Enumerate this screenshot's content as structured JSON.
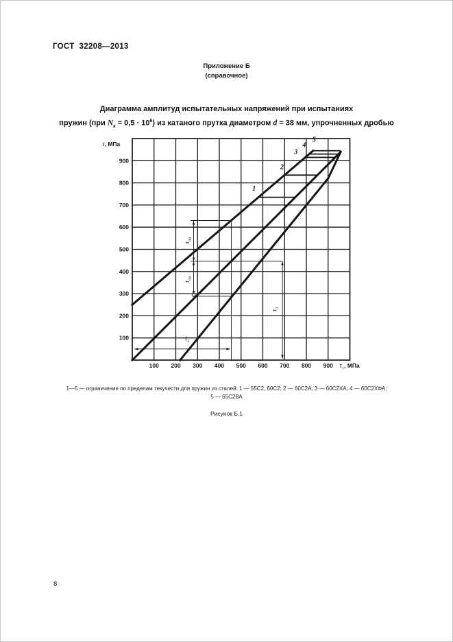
{
  "page": {
    "standard_code": "ГОСТ  32208—2013",
    "page_number": "8"
  },
  "appendix": {
    "heading": "Приложение Б",
    "subheading": "(справочное)"
  },
  "figure_title": {
    "line1": "Диаграмма амплитуд испытательных напряжений при испытаниях",
    "line2_parts": [
      "пружин (при ",
      "N",
      "к",
      " = 0,5 · 10",
      "6",
      ") из катаного прутка диаметром ",
      "d",
      " = 38 мм, упрочненных дробью"
    ]
  },
  "caption": {
    "line1": "1—5 — ограничение по пределам текучести для пружин из сталей: 1 — 55С2, 60С2; 2 — 60С2А; 3 — 60С2ХА; 4 — 60С2ХФА;",
    "line2": "5 — 65С2ВА",
    "figure_label": "Рисунок Б.1"
  },
  "chart_data": {
    "type": "line",
    "title": "Диаграмма амплитуд испытательных напряжений (Рисунок Б.1)",
    "ylabel_parts": [
      "τ",
      ", МПа"
    ],
    "xlabel_parts": [
      "τ",
      "1",
      ", МПа"
    ],
    "xlim": [
      0,
      1000
    ],
    "ylim": [
      0,
      1000
    ],
    "grid_step": 100,
    "grid": true,
    "xticks": [
      100,
      200,
      300,
      400,
      500,
      600,
      700,
      800,
      900
    ],
    "yticks": [
      100,
      200,
      300,
      400,
      500,
      600,
      700,
      800,
      900
    ],
    "series": [
      {
        "name": "upper-envelope-line",
        "points": [
          [
            0,
            250
          ],
          [
            831,
            945
          ]
        ]
      },
      {
        "name": "mean-stress-line",
        "points": [
          [
            0,
            0
          ],
          [
            958,
            940
          ]
        ]
      },
      {
        "name": "min-stress-line",
        "points": [
          [
            220,
            0
          ],
          [
            900,
            820
          ],
          [
            958,
            940
          ]
        ]
      }
    ],
    "yield_plateaus": [
      {
        "label": "1",
        "steels": "55С2, 60С2",
        "y": 735,
        "x_start": 580,
        "x_end": 749
      },
      {
        "label": "2",
        "steels": "60С2А",
        "y": 835,
        "x_start": 700,
        "x_end": 851
      },
      {
        "label": "3",
        "steels": "60С2ХА",
        "y": 915,
        "x_start": 795,
        "x_end": 933
      },
      {
        "label": "4",
        "steels": "60С2ХФА",
        "y": 930,
        "x_start": 813,
        "x_end": 948
      },
      {
        "label": "5",
        "steels": "65С2ВА",
        "y": 945,
        "x_start": 831,
        "x_end": 958
      }
    ],
    "curve_label_positions": [
      [
        560,
        765
      ],
      [
        688,
        862
      ],
      [
        752,
        930
      ],
      [
        790,
        962
      ],
      [
        836,
        986
      ]
    ],
    "constructions": {
      "lines": [
        {
          "name": "vertical-at-450",
          "pts": [
            [
              455,
              0
            ],
            [
              455,
              630
            ]
          ]
        },
        {
          "name": "bracket-at-630",
          "pts": [
            [
              268,
              630
            ],
            [
              455,
              630
            ]
          ]
        },
        {
          "name": "horizontal-at-446",
          "pts": [
            [
              268,
              446
            ],
            [
              690,
              446
            ]
          ]
        },
        {
          "name": "horizontal-at-288",
          "pts": [
            [
              283,
              288
            ],
            [
              458,
              288
            ]
          ]
        }
      ],
      "double_arrows": [
        {
          "x1": 282,
          "y1": 446,
          "x2": 282,
          "y2": 628
        },
        {
          "x1": 282,
          "y1": 295,
          "x2": 282,
          "y2": 446
        },
        {
          "x1": 10,
          "y1": 50,
          "x2": 450,
          "y2": 50
        },
        {
          "x1": 690,
          "y1": 6,
          "x2": 690,
          "y2": 446
        }
      ],
      "labels": [
        {
          "main": "τ",
          "sub": "аи",
          "x": 262,
          "y": 540,
          "rotate": true
        },
        {
          "main": "τ",
          "sub": "аи",
          "x": 262,
          "y": 364,
          "rotate": true
        },
        {
          "main": "τ",
          "sub": "1",
          "x": 252,
          "y": 88,
          "rotate": false
        },
        {
          "main": "τ",
          "sub": "1",
          "x": 663,
          "y": 230,
          "rotate": true
        }
      ],
      "circle_marker": {
        "x": 282,
        "y": 294,
        "r": 2.3
      }
    }
  }
}
